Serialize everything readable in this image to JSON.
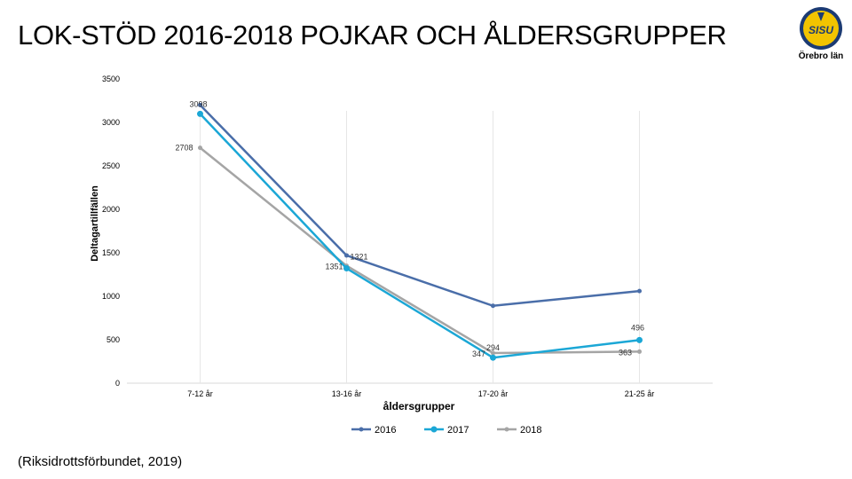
{
  "header": {
    "title": "LOK-STÖD 2016-2018 POJKAR OCH ÅLDERSGRUPPER",
    "logo_badge": "SISU",
    "logo_text": "Örebro län"
  },
  "source": "(Riksidrottsförbundet, 2019)",
  "colors": {
    "series_2016": "#4a6ea9",
    "series_2017": "#1ba7d6",
    "series_2018": "#a5a5a5",
    "gridline": "#e6e6e6",
    "axis": "#d9d9d9",
    "logo_fill": "#f2c400",
    "logo_ring": "#1c3b73"
  },
  "chart_data": {
    "type": "line",
    "title": "",
    "xlabel": "åldersgrupper",
    "ylabel": "Deltagartillfällen",
    "categories": [
      "7-12 år",
      "13-16 år",
      "17-20 år",
      "21-25 år"
    ],
    "ylim": [
      0,
      3500
    ],
    "yticks": [
      0,
      500,
      1000,
      1500,
      2000,
      2500,
      3000,
      3500
    ],
    "series": [
      {
        "name": "2016",
        "values": [
          3200,
          1470,
          890,
          1060
        ],
        "labels": [
          "",
          "",
          "",
          ""
        ]
      },
      {
        "name": "2017",
        "values": [
          3098,
          1321,
          294,
          496
        ],
        "labels": [
          "3098",
          "1321",
          "294",
          "496"
        ]
      },
      {
        "name": "2018",
        "values": [
          2708,
          1351,
          347,
          363
        ],
        "labels": [
          "2708",
          "1351",
          "347",
          "363"
        ]
      }
    ],
    "legend_position": "bottom"
  }
}
